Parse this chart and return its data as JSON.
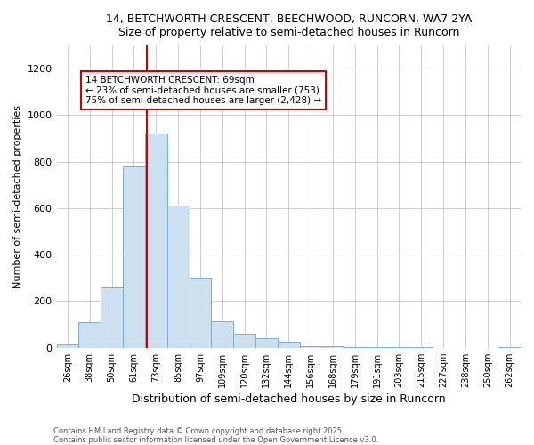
{
  "title": "14, BETCHWORTH CRESCENT, BEECHWOOD, RUNCORN, WA7 2YA",
  "subtitle": "Size of property relative to semi-detached houses in Runcorn",
  "xlabel": "Distribution of semi-detached houses by size in Runcorn",
  "ylabel": "Number of semi-detached properties",
  "categories": [
    "26sqm",
    "38sqm",
    "50sqm",
    "61sqm",
    "73sqm",
    "85sqm",
    "97sqm",
    "109sqm",
    "120sqm",
    "132sqm",
    "144sqm",
    "156sqm",
    "168sqm",
    "179sqm",
    "191sqm",
    "203sqm",
    "215sqm",
    "227sqm",
    "238sqm",
    "250sqm",
    "262sqm"
  ],
  "values": [
    15,
    110,
    260,
    780,
    920,
    610,
    300,
    115,
    60,
    40,
    25,
    8,
    5,
    3,
    2,
    1,
    1,
    0,
    0,
    0,
    2
  ],
  "bar_color": "#cce0f0",
  "bar_edge_color": "#7ab0d0",
  "grid_color": "#cccccc",
  "bg_color": "#ffffff",
  "red_line_x": 3.57,
  "red_line_color": "#cc0000",
  "annotation_title": "14 BETCHWORTH CRESCENT: 69sqm",
  "annotation_line1": "← 23% of semi-detached houses are smaller (753)",
  "annotation_line2": "75% of semi-detached houses are larger (2,428) →",
  "annotation_box_color": "#cc0000",
  "footnote1": "Contains HM Land Registry data © Crown copyright and database right 2025.",
  "footnote2": "Contains public sector information licensed under the Open Government Licence v3.0.",
  "ylim": [
    0,
    1300
  ],
  "yticks": [
    0,
    200,
    400,
    600,
    800,
    1000,
    1200
  ]
}
